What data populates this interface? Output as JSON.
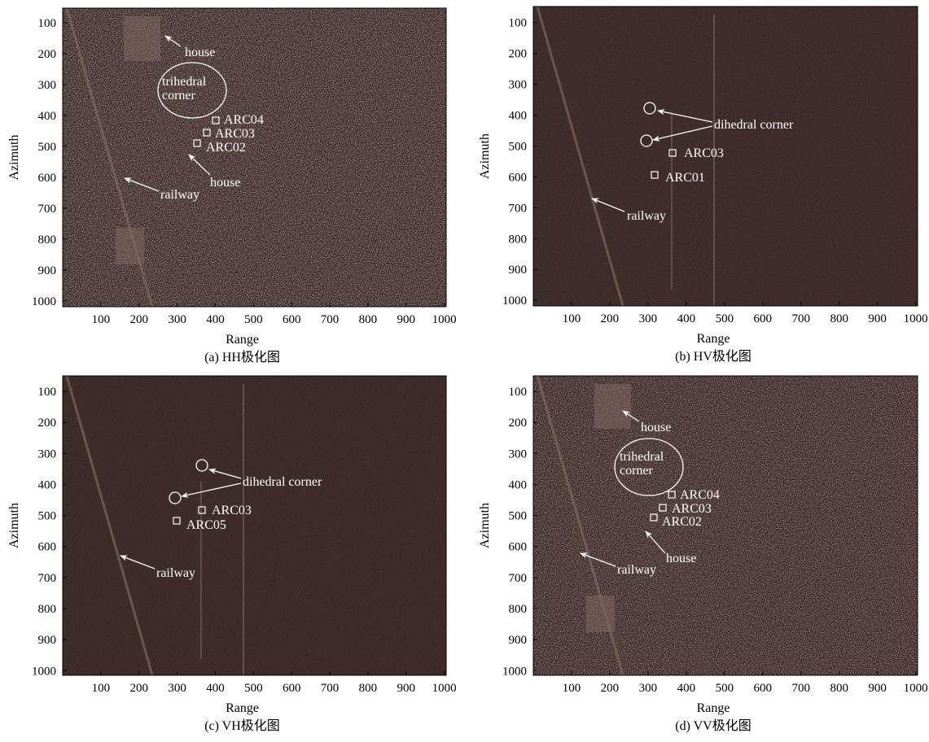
{
  "panels": [
    {
      "caption": "(a) HH极化图",
      "xlabel": "Range",
      "ylabel": "Azimuth",
      "xlim": [
        0,
        1005
      ],
      "ylim": [
        53,
        1019
      ],
      "xticks": [
        100,
        200,
        300,
        400,
        500,
        600,
        700,
        800,
        900,
        1000
      ],
      "yticks": [
        100,
        200,
        300,
        400,
        500,
        600,
        700,
        800,
        900,
        1000
      ],
      "labels": [
        "house",
        "trihedral",
        "corner",
        "ARC04",
        "ARC03",
        "ARC02",
        "house",
        "railway"
      ]
    },
    {
      "caption": "(b) HV极化图",
      "xlabel": "Range",
      "ylabel": "Azimuth",
      "xlim": [
        0,
        1005
      ],
      "ylim": [
        48,
        1018
      ],
      "xticks": [
        100,
        200,
        300,
        400,
        500,
        600,
        700,
        800,
        900,
        1000
      ],
      "yticks": [
        100,
        200,
        300,
        400,
        500,
        600,
        700,
        800,
        900,
        1000
      ],
      "labels": [
        "dihedral corner",
        "ARC03",
        "ARC01",
        "railway"
      ]
    },
    {
      "caption": "(c) VH极化图",
      "xlabel": "Range",
      "ylabel": "Azimuth",
      "xlim": [
        0,
        1005
      ],
      "ylim": [
        50,
        1015
      ],
      "xticks": [
        100,
        200,
        300,
        400,
        500,
        600,
        700,
        800,
        900,
        1000
      ],
      "yticks": [
        100,
        200,
        300,
        400,
        500,
        600,
        700,
        800,
        900,
        1000
      ],
      "labels": [
        "dihedral corner",
        "ARC03",
        "ARC05",
        "railway"
      ]
    },
    {
      "caption": "(d) VV极化图",
      "xlabel": "Range",
      "ylabel": "Azimuth",
      "xlim": [
        0,
        1005
      ],
      "ylim": [
        50,
        1015
      ],
      "xticks": [
        100,
        200,
        300,
        400,
        500,
        600,
        700,
        800,
        900,
        1000
      ],
      "yticks": [
        100,
        200,
        300,
        400,
        500,
        600,
        700,
        800,
        900,
        1000
      ],
      "labels": [
        "house",
        "trihedral",
        "corner",
        "ARC04",
        "ARC03",
        "ARC02",
        "house",
        "railway"
      ]
    }
  ]
}
